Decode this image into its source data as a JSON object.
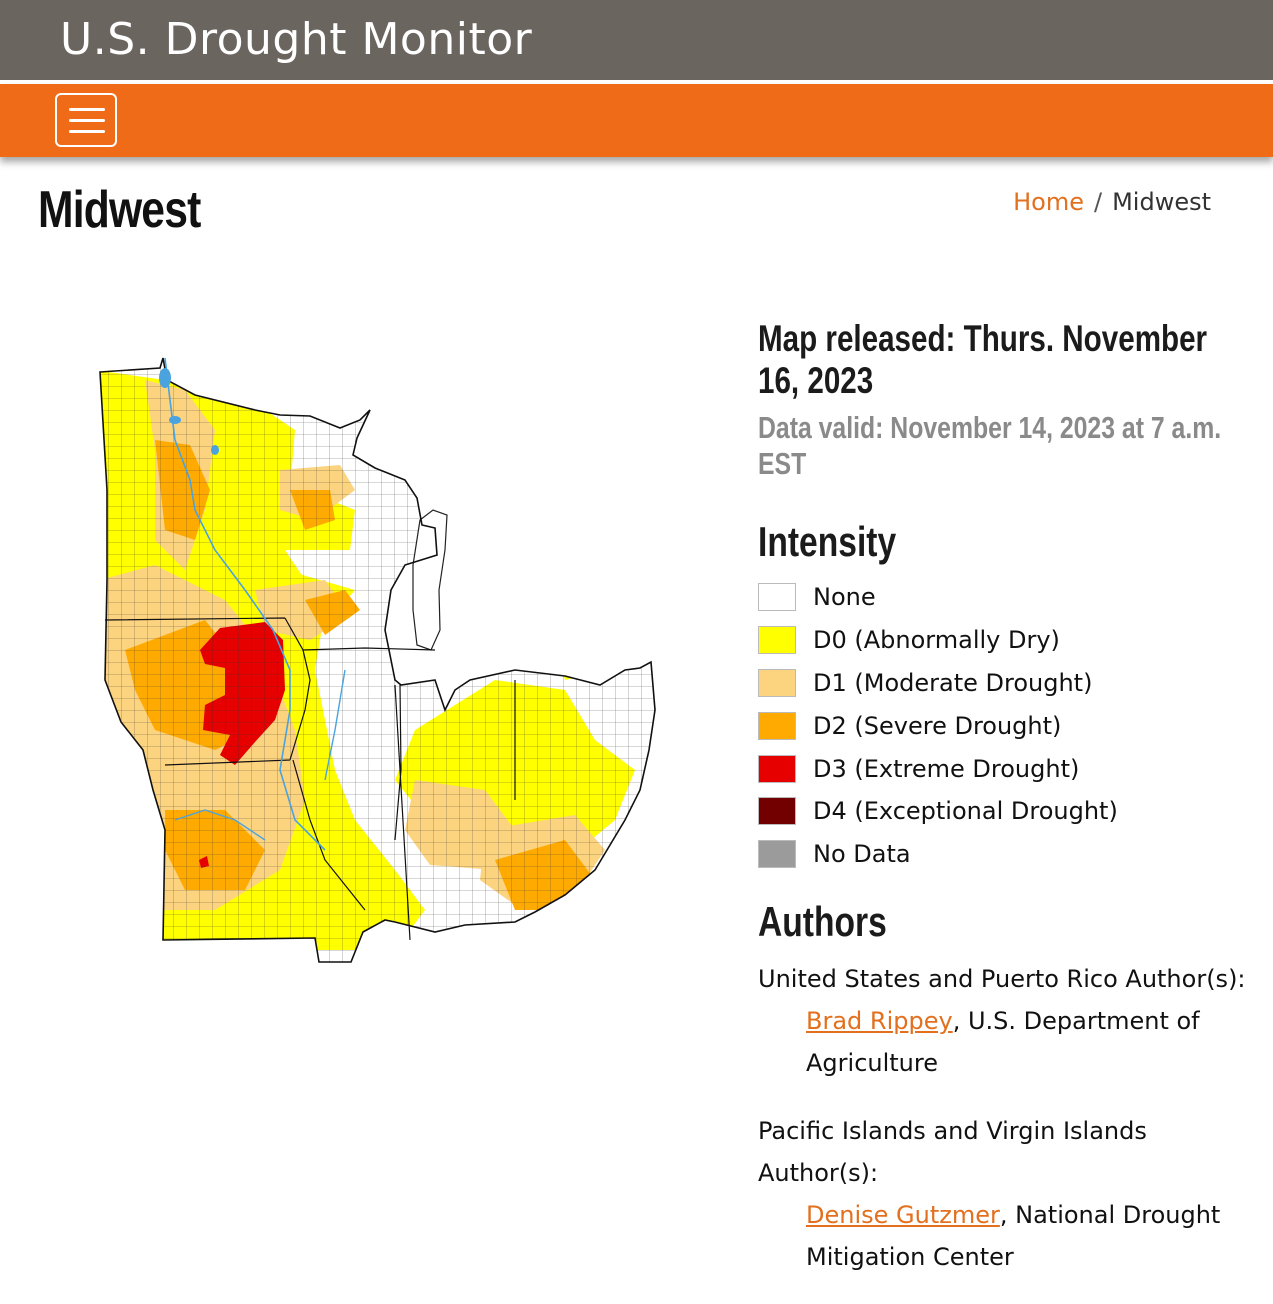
{
  "header": {
    "site_title": "U.S. Drought Monitor",
    "menu_button_label": "menu-icon"
  },
  "page": {
    "title": "Midwest"
  },
  "breadcrumb": {
    "home": "Home",
    "separator": "/",
    "current": "Midwest"
  },
  "map": {
    "region": "Midwest",
    "icon": "drought-map"
  },
  "sidebar": {
    "released": "Map released: Thurs. November 16, 2023",
    "valid": "Data valid: November 14, 2023 at 7 a.m. EST",
    "intensity_heading": "Intensity",
    "legend": [
      {
        "code": "",
        "label": "None",
        "color": "#ffffff"
      },
      {
        "code": "D0",
        "label": "(Abnormally Dry)",
        "color": "#ffff00"
      },
      {
        "code": "D1",
        "label": "(Moderate Drought)",
        "color": "#fcd37f"
      },
      {
        "code": "D2",
        "label": "(Severe Drought)",
        "color": "#ffaa00"
      },
      {
        "code": "D3",
        "label": "(Extreme Drought)",
        "color": "#e60000"
      },
      {
        "code": "D4",
        "label": "(Exceptional Drought)",
        "color": "#730000"
      },
      {
        "code": "",
        "label": "No Data",
        "color": "#9b9b9b"
      }
    ],
    "authors_heading": "Authors",
    "author_groups": [
      {
        "title": "United States and Puerto Rico Author(s):",
        "name": "Brad Rippey",
        "affiliation": ", U.S. Department of Agriculture"
      },
      {
        "title": "Pacific Islands and Virgin Islands Author(s):",
        "name": "Denise Gutzmer",
        "affiliation": ", National Drought Mitigation Center"
      }
    ]
  },
  "colors": {
    "header_bg": "#6b6560",
    "nav_bg": "#ef6b17",
    "link": "#e2701e"
  }
}
